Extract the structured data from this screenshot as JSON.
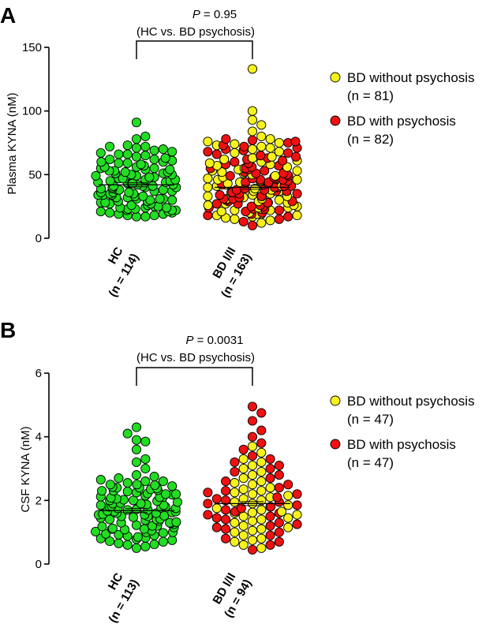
{
  "colors": {
    "hc": "#22dd22",
    "bd_without": "#f7f21a",
    "bd_with": "#ee1111"
  },
  "chart_data": [
    {
      "type": "scatter",
      "panel": "A",
      "ylabel": "Plasma KYNA (nM)",
      "ylim": [
        0,
        150
      ],
      "yticks": [
        0,
        50,
        100,
        150
      ],
      "categories": [
        {
          "line1": "HC",
          "line2": "(n = 114)"
        },
        {
          "line1": "BD I/II",
          "line2": "(n = 163)"
        }
      ],
      "annotation": {
        "p_label": "P",
        "p_value": " = 0.95",
        "comparison": "(HC vs. BD psychosis)"
      },
      "legend": [
        {
          "line1": "BD without psychosis",
          "line2": "(n = 81)"
        },
        {
          "line1": "BD with psychosis",
          "line2": "(n = 82)"
        }
      ],
      "legend_position": "right",
      "means": {
        "hc": 42,
        "bd": 40
      },
      "series": {
        "hc": [
          17,
          17,
          18,
          18,
          19,
          19,
          20,
          20,
          21,
          21,
          22,
          22,
          22,
          23,
          23,
          24,
          24,
          24,
          25,
          25,
          26,
          26,
          27,
          27,
          28,
          28,
          29,
          29,
          30,
          30,
          31,
          31,
          31,
          32,
          32,
          33,
          33,
          34,
          34,
          34,
          35,
          35,
          36,
          36,
          36,
          37,
          37,
          38,
          38,
          38,
          39,
          39,
          40,
          40,
          40,
          41,
          41,
          41,
          42,
          42,
          43,
          43,
          43,
          44,
          44,
          45,
          45,
          46,
          46,
          47,
          47,
          48,
          48,
          49,
          49,
          50,
          50,
          51,
          51,
          52,
          52,
          53,
          53,
          54,
          54,
          55,
          55,
          56,
          56,
          57,
          58,
          59,
          59,
          60,
          60,
          61,
          62,
          62,
          63,
          64,
          65,
          66,
          66,
          67,
          68,
          69,
          70,
          71,
          72,
          72,
          73,
          78,
          80,
          91
        ],
        "bd_without": [
          12,
          14,
          15,
          16,
          17,
          18,
          18,
          19,
          19,
          20,
          21,
          22,
          22,
          23,
          24,
          24,
          25,
          26,
          26,
          27,
          28,
          28,
          29,
          30,
          31,
          31,
          32,
          33,
          33,
          34,
          35,
          36,
          37,
          37,
          38,
          39,
          40,
          41,
          41,
          42,
          43,
          44,
          45,
          46,
          46,
          47,
          48,
          49,
          50,
          51,
          52,
          53,
          53,
          54,
          55,
          56,
          57,
          58,
          59,
          60,
          61,
          62,
          63,
          64,
          65,
          67,
          68,
          70,
          71,
          72,
          73,
          74,
          75,
          76,
          78,
          80,
          84,
          89,
          93,
          100,
          133
        ],
        "bd_with": [
          10,
          13,
          15,
          17,
          18,
          19,
          20,
          21,
          22,
          23,
          23,
          24,
          25,
          25,
          26,
          27,
          27,
          28,
          29,
          29,
          30,
          31,
          31,
          32,
          33,
          33,
          34,
          35,
          35,
          36,
          37,
          37,
          38,
          38,
          39,
          40,
          40,
          41,
          41,
          42,
          42,
          43,
          44,
          44,
          45,
          46,
          46,
          47,
          47,
          48,
          49,
          49,
          50,
          51,
          51,
          52,
          53,
          54,
          55,
          55,
          56,
          57,
          58,
          59,
          60,
          61,
          62,
          63,
          64,
          65,
          66,
          67,
          68,
          69,
          70,
          71,
          72,
          73,
          75,
          76,
          77,
          78
        ]
      }
    },
    {
      "type": "scatter",
      "panel": "B",
      "ylabel": "CSF KYNA (nM)",
      "ylim": [
        0,
        6
      ],
      "yticks": [
        0,
        2,
        4,
        6
      ],
      "categories": [
        {
          "line1": "HC",
          "line2": "(n = 113)"
        },
        {
          "line1": "BD I/II",
          "line2": "(n = 94)"
        }
      ],
      "annotation": {
        "p_label": "P",
        "p_value": " = 0.0031",
        "comparison": "(HC vs. BD psychosis)"
      },
      "legend": [
        {
          "line1": "BD without psychosis",
          "line2": "(n = 47)"
        },
        {
          "line1": "BD with psychosis",
          "line2": "(n = 47)"
        }
      ],
      "legend_position": "right",
      "means": {
        "hc": 1.68,
        "bd": 1.9
      },
      "series": {
        "hc": [
          0.5,
          0.55,
          0.6,
          0.65,
          0.7,
          0.72,
          0.75,
          0.8,
          0.82,
          0.85,
          0.9,
          0.92,
          0.95,
          0.98,
          1.0,
          1.02,
          1.05,
          1.08,
          1.1,
          1.12,
          1.15,
          1.18,
          1.2,
          1.22,
          1.25,
          1.28,
          1.3,
          1.32,
          1.35,
          1.38,
          1.4,
          1.42,
          1.45,
          1.47,
          1.5,
          1.52,
          1.55,
          1.57,
          1.6,
          1.62,
          1.65,
          1.67,
          1.7,
          1.72,
          1.75,
          1.77,
          1.8,
          1.82,
          1.85,
          1.87,
          1.9,
          1.92,
          1.95,
          1.98,
          2.0,
          2.02,
          2.05,
          2.08,
          2.1,
          2.12,
          2.15,
          2.18,
          2.2,
          2.22,
          2.25,
          2.28,
          2.3,
          2.32,
          2.35,
          2.38,
          2.4,
          2.42,
          2.45,
          2.48,
          2.5,
          2.55,
          2.6,
          2.65,
          2.7,
          2.75,
          0.62,
          0.78,
          0.88,
          1.0,
          1.1,
          1.2,
          1.3,
          1.4,
          1.5,
          1.6,
          1.7,
          1.8,
          1.9,
          2.0,
          2.1,
          2.2,
          2.3,
          2.4,
          2.5,
          2.6,
          1.55,
          1.65,
          1.75,
          1.85,
          2.8,
          3.0,
          3.2,
          3.3,
          3.6,
          3.9,
          4.1,
          4.3,
          3.85
        ],
        "bd_without": [
          0.5,
          0.6,
          0.7,
          0.75,
          0.8,
          0.9,
          1.0,
          1.05,
          1.1,
          1.15,
          1.2,
          1.3,
          1.35,
          1.4,
          1.45,
          1.5,
          1.55,
          1.6,
          1.62,
          1.65,
          1.7,
          1.75,
          1.8,
          1.85,
          1.9,
          1.95,
          2.0,
          2.05,
          2.1,
          2.15,
          2.2,
          2.25,
          2.3,
          2.35,
          2.4,
          2.5,
          2.55,
          2.6,
          2.7,
          2.8,
          2.9,
          3.0,
          3.1,
          3.2,
          3.3,
          3.5,
          3.7
        ],
        "bd_with": [
          0.45,
          0.6,
          0.7,
          0.8,
          0.9,
          1.0,
          1.1,
          1.15,
          1.2,
          1.25,
          1.3,
          1.4,
          1.45,
          1.5,
          1.55,
          1.6,
          1.65,
          1.7,
          1.75,
          1.8,
          1.85,
          1.9,
          1.95,
          2.0,
          2.05,
          2.1,
          2.2,
          2.25,
          2.3,
          2.4,
          2.5,
          2.6,
          2.7,
          2.8,
          2.9,
          3.0,
          3.1,
          3.2,
          3.3,
          3.4,
          3.6,
          3.8,
          4.0,
          4.2,
          4.5,
          4.75,
          4.95
        ]
      }
    }
  ]
}
